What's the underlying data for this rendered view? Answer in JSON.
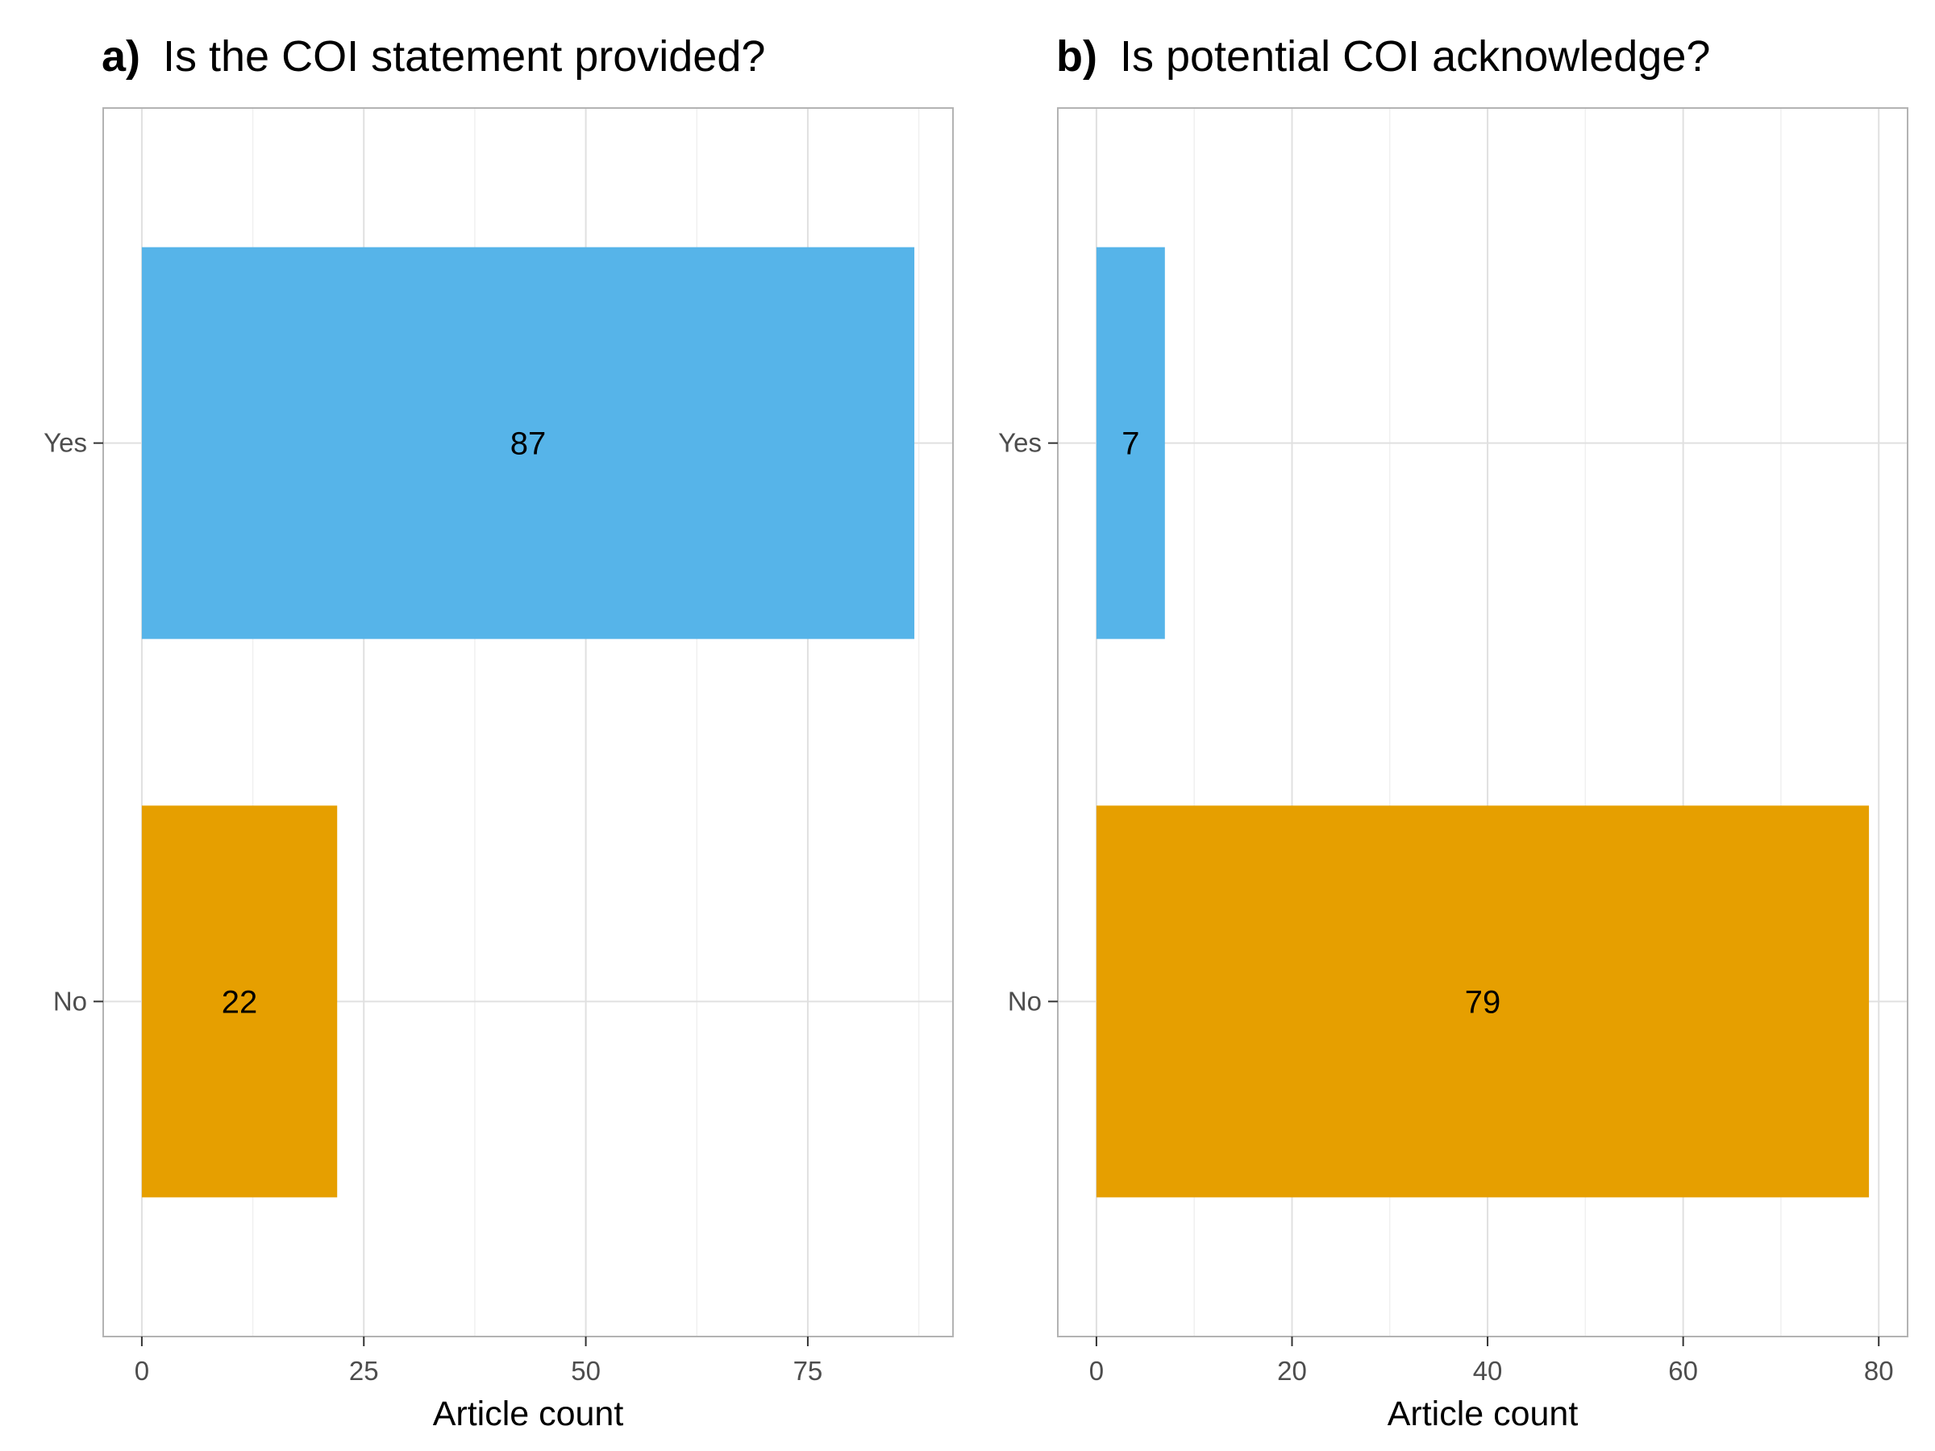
{
  "chart_data": [
    {
      "type": "bar",
      "orientation": "horizontal",
      "tag": "a)",
      "title": "Is the COI statement provided?",
      "xlabel": "Article count",
      "ylabel": "",
      "categories": [
        "Yes",
        "No"
      ],
      "values": [
        87,
        22
      ],
      "colors": [
        "#56B4E9",
        "#E69F00"
      ],
      "xlim": [
        -4.35,
        91.35
      ],
      "xticks": [
        0,
        25,
        50,
        75
      ],
      "xtick_labels": [
        "0",
        "25",
        "50",
        "75"
      ],
      "grid": true,
      "legend": "none"
    },
    {
      "type": "bar",
      "orientation": "horizontal",
      "tag": "b)",
      "title": "Is potential COI acknowledge?",
      "xlabel": "Article count",
      "ylabel": "",
      "categories": [
        "Yes",
        "No"
      ],
      "values": [
        7,
        79
      ],
      "colors": [
        "#56B4E9",
        "#E69F00"
      ],
      "xlim": [
        -3.95,
        82.95
      ],
      "xticks": [
        0,
        20,
        40,
        60,
        80
      ],
      "xtick_labels": [
        "0",
        "20",
        "40",
        "60",
        "80"
      ],
      "grid": true,
      "legend": "none"
    }
  ]
}
